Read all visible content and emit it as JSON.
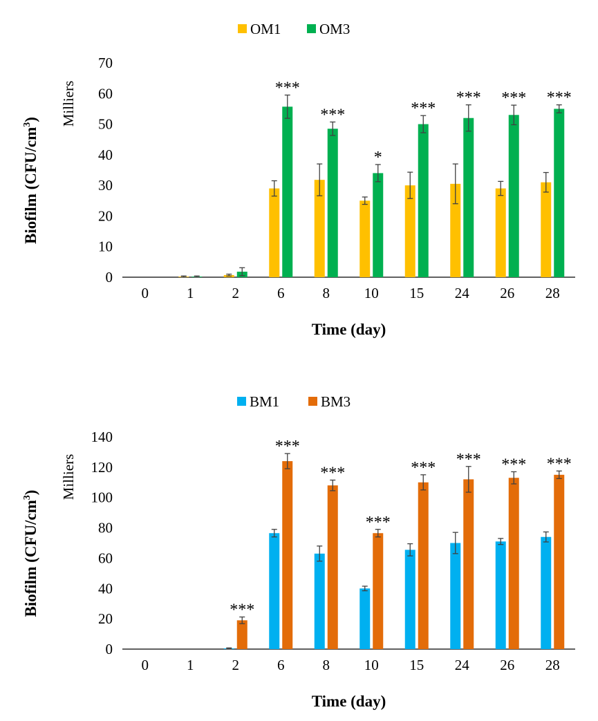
{
  "chart_data": [
    {
      "type": "bar",
      "categories": [
        "0",
        "1",
        "2",
        "6",
        "8",
        "10",
        "15",
        "24",
        "26",
        "28"
      ],
      "series": [
        {
          "name": "OM1",
          "color": "#FFC000",
          "values": [
            0,
            0.2,
            0.7,
            29,
            31.8,
            25,
            30,
            30.5,
            29,
            31
          ],
          "errors": [
            0,
            0.2,
            0.3,
            2.5,
            5.2,
            1.2,
            4.3,
            6.5,
            2.3,
            3.2
          ]
        },
        {
          "name": "OM3",
          "color": "#00B050",
          "values": [
            0,
            0.2,
            1.8,
            55.7,
            48.5,
            34,
            50,
            52,
            53,
            55
          ],
          "errors": [
            0,
            0.2,
            1.3,
            3.8,
            2.2,
            2.8,
            2.8,
            4.3,
            3.2,
            1.3
          ]
        }
      ],
      "significance": [
        "",
        "",
        "",
        "***",
        "***",
        "*",
        "***",
        "***",
        "***",
        "***"
      ],
      "title": "",
      "xlabel": "Time (day)",
      "ylabel": "Biofilm (CFU/cm",
      "ylabel_sup": "3",
      "ylabel_close": ")",
      "unit_label": "Milliers",
      "ylim": [
        0,
        70
      ],
      "yticks": [
        0,
        10,
        20,
        30,
        40,
        50,
        60,
        70
      ],
      "legend_position": "top-center"
    },
    {
      "type": "bar",
      "categories": [
        "0",
        "1",
        "2",
        "6",
        "8",
        "10",
        "15",
        "24",
        "26",
        "28"
      ],
      "series": [
        {
          "name": "BM1",
          "color": "#00B0F0",
          "values": [
            0,
            0,
            0.5,
            76.5,
            63,
            40,
            65.5,
            70,
            71,
            74
          ],
          "errors": [
            0,
            0,
            0.3,
            2.5,
            5,
            1.5,
            4,
            7,
            2,
            3.3
          ]
        },
        {
          "name": "BM3",
          "color": "#E36C09",
          "values": [
            0,
            0,
            19,
            124,
            108,
            76.5,
            110,
            112,
            113,
            115
          ],
          "errors": [
            0,
            0,
            2.2,
            5,
            3.5,
            2.5,
            5,
            8.5,
            4,
            2.5
          ]
        }
      ],
      "significance": [
        "",
        "",
        "***",
        "***",
        "***",
        "***",
        "***",
        "***",
        "***",
        "***"
      ],
      "title": "",
      "xlabel": "Time (day)",
      "ylabel": "Biofilm (CFU/cm",
      "ylabel_sup": "3",
      "ylabel_close": ")",
      "unit_label": "Milliers",
      "ylim": [
        0,
        140
      ],
      "yticks": [
        0,
        20,
        40,
        60,
        80,
        100,
        120,
        140
      ],
      "legend_position": "top-center"
    }
  ]
}
